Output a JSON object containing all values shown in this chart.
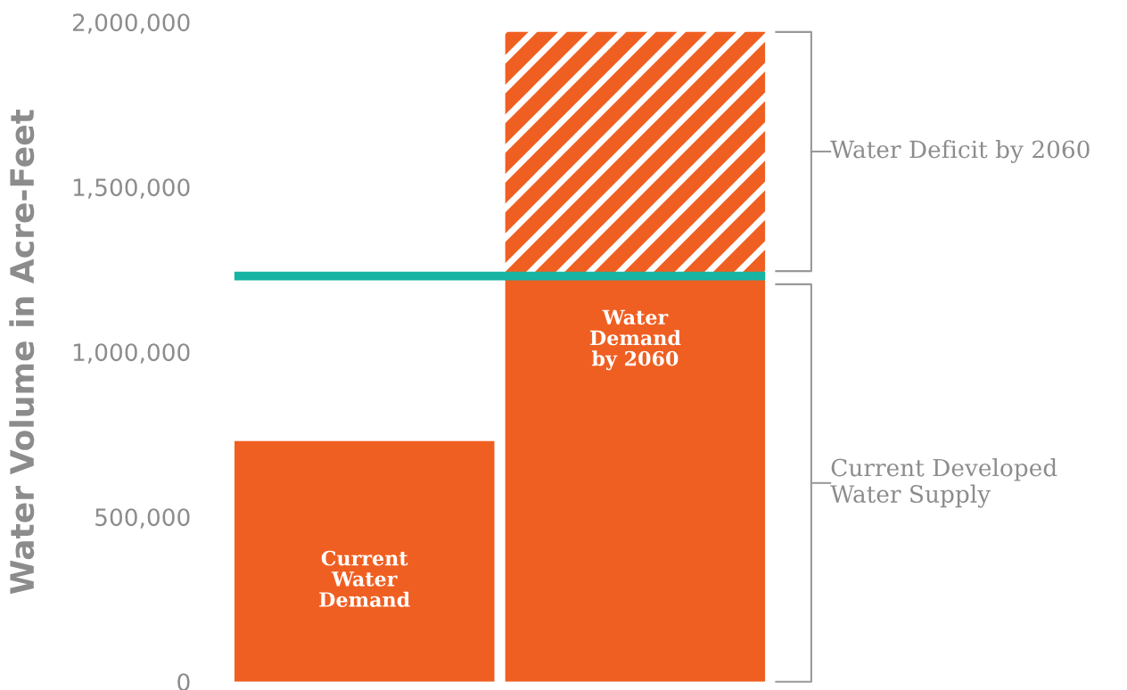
{
  "chart_data": {
    "type": "bar",
    "stacked": true,
    "ylabel": "Water Volume in Acre-Feet",
    "categories": [
      "Current\nWater\nDemand",
      "Water\nDemand\nby 2060"
    ],
    "series": [
      {
        "color": "#f05f22",
        "values": [
          730000,
          1220000
        ]
      },
      {
        "name": "Water Deficit by 2060",
        "color": "#f05f22",
        "values": [
          null,
          750000
        ]
      }
    ],
    "ylim": [
      0,
      2000000
    ],
    "yticks": [
      {
        "value": 0,
        "label": "0"
      },
      {
        "value": 500000,
        "label": "500,000"
      },
      {
        "value": 1000000,
        "label": "1,000,000"
      },
      {
        "value": 1500000,
        "label": "1,500,000"
      },
      {
        "value": 2000000,
        "label": "2,000,000"
      }
    ],
    "ref_lines": [
      {
        "axis": "y",
        "value": 1230000,
        "color": "#17b3a3"
      }
    ],
    "annotations": [
      "Current Developed\nWater Supply"
    ],
    "grid": false,
    "legend": false
  }
}
